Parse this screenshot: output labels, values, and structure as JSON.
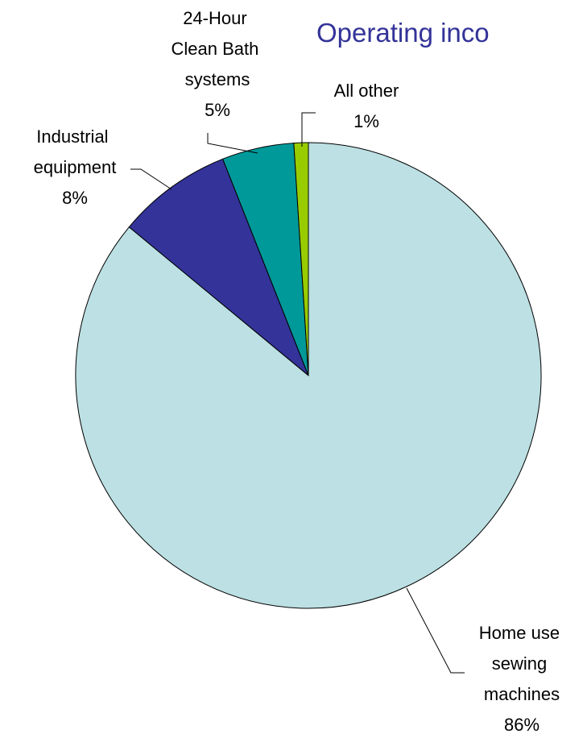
{
  "chart_data": {
    "type": "pie",
    "title": "Operating inco",
    "categories": [
      "Home use sewing machines",
      "Industrial equipment",
      "24-Hour Clean Bath systems",
      "All other"
    ],
    "values": [
      86,
      8,
      5,
      1
    ],
    "value_labels": [
      "86%",
      "8%",
      "5%",
      "1%"
    ],
    "colors": [
      "#bce0e3",
      "#333399",
      "#009999",
      "#99cc00"
    ]
  }
}
